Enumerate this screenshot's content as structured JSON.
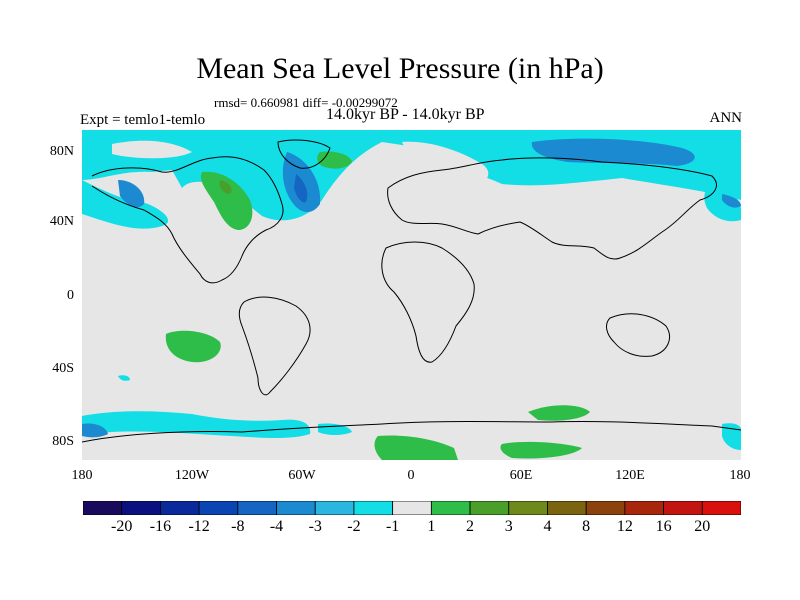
{
  "title": "Mean Sea Level Pressure (in hPa)",
  "stats": "rmsd= 0.660981 diff= -0.00299072",
  "experiment": "Expt = temlo1-temlo",
  "subtitle": "14.0kyr BP - 14.0kyr BP",
  "season": "ANN",
  "lat_labels": [
    "80N",
    "40N",
    "0",
    "40S",
    "80S"
  ],
  "lon_labels": [
    "180",
    "120W",
    "60W",
    "0",
    "60E",
    "120E",
    "180"
  ],
  "colorbar": {
    "labels": [
      "-20",
      "-16",
      "-12",
      "-8",
      "-4",
      "-3",
      "-2",
      "-1",
      "1",
      "2",
      "3",
      "4",
      "8",
      "12",
      "16",
      "20"
    ],
    "colors": [
      "#1a0a5e",
      "#0b1080",
      "#0a2a9c",
      "#0b45b3",
      "#1466c2",
      "#1c8ad1",
      "#29b7e0",
      "#13dee6",
      "#e6e6e6",
      "#2ebd49",
      "#4a9e2a",
      "#6e8a1a",
      "#7a6410",
      "#8c420c",
      "#a8260c",
      "#c21410",
      "#d9100e"
    ]
  },
  "map_colors": {
    "ocean_default": "#e6e6e6",
    "coast": "#000000"
  }
}
